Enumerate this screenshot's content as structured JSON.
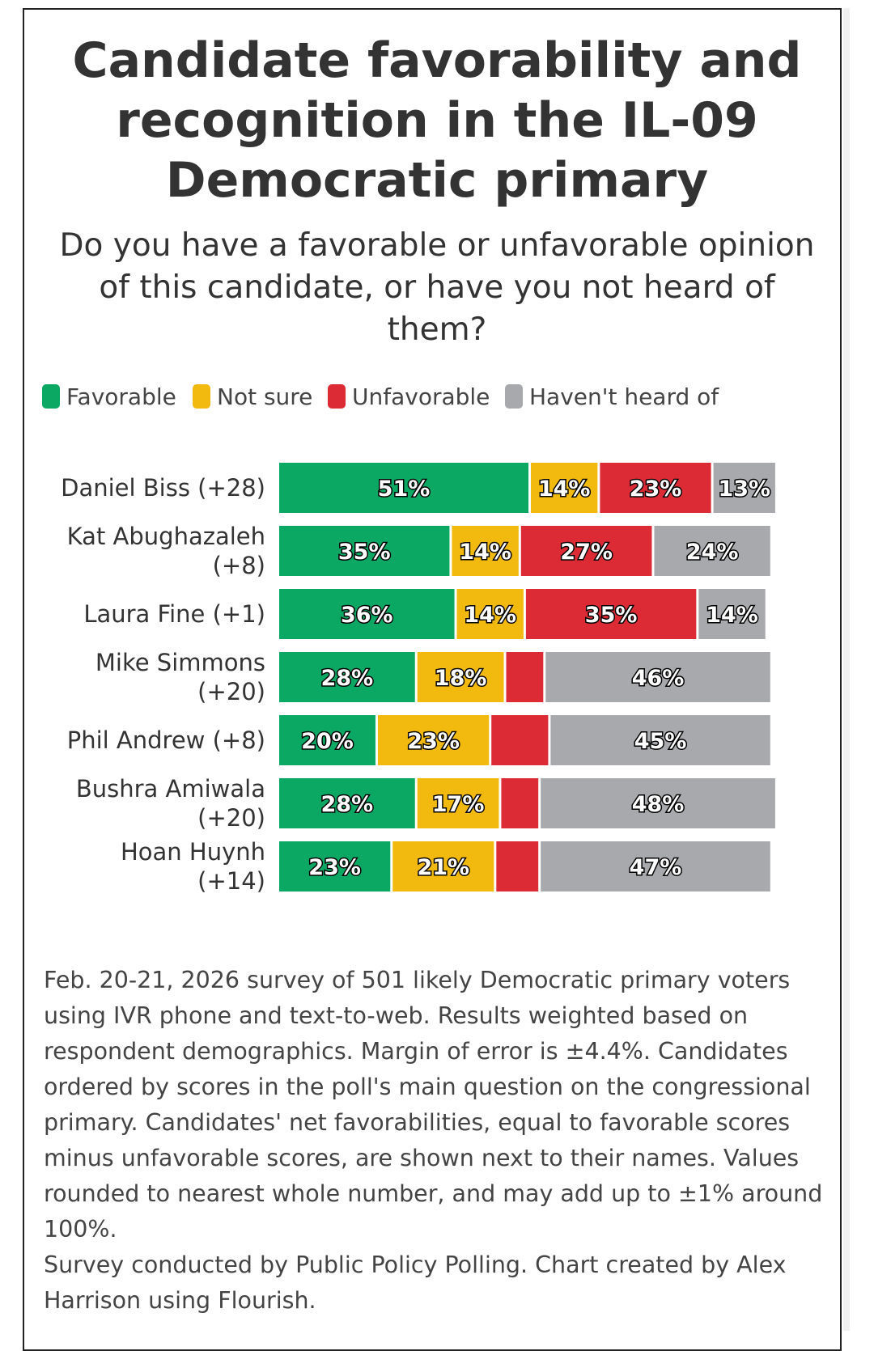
{
  "title": "Candidate favorability and recognition in the IL-09 Democratic primary",
  "subtitle": "Do you have a favorable or unfavorable opinion of this candidate, or have you not heard of them?",
  "colors": {
    "favorable": "#0aa862",
    "not_sure": "#f2b90e",
    "unfavorable": "#dc2b34",
    "havent_heard": "#a8a9ad"
  },
  "legend": [
    {
      "label": "Favorable",
      "color": "#0aa862"
    },
    {
      "label": "Not sure",
      "color": "#f2b90e"
    },
    {
      "label": "Unfavorable",
      "color": "#dc2b34"
    },
    {
      "label": "Haven't heard of",
      "color": "#a8a9ad"
    }
  ],
  "chart_data": {
    "type": "bar",
    "orientation": "horizontal",
    "stacked": true,
    "categories": [
      [
        "Daniel Biss (+28)"
      ],
      [
        "Kat Abughazaleh",
        "(+8)"
      ],
      [
        "Laura Fine (+1)"
      ],
      [
        "Mike Simmons",
        "(+20)"
      ],
      [
        "Phil Andrew (+8)"
      ],
      [
        "Bushra Amiwala",
        "(+20)"
      ],
      [
        "Hoan Huynh",
        "(+14)"
      ]
    ],
    "series": [
      {
        "name": "Favorable",
        "color": "#0aa862",
        "values": [
          51,
          35,
          36,
          28,
          20,
          28,
          23
        ],
        "labels": [
          "51%",
          "35%",
          "36%",
          "28%",
          "20%",
          "28%",
          "23%"
        ]
      },
      {
        "name": "Not sure",
        "color": "#f2b90e",
        "values": [
          14,
          14,
          14,
          18,
          23,
          17,
          21
        ],
        "labels": [
          "14%",
          "14%",
          "14%",
          "18%",
          "23%",
          "17%",
          "21%"
        ]
      },
      {
        "name": "Unfavorable",
        "color": "#dc2b34",
        "values": [
          23,
          27,
          35,
          8,
          12,
          8,
          9
        ],
        "labels": [
          "23%",
          "27%",
          "35%",
          "",
          "",
          "",
          ""
        ]
      },
      {
        "name": "Haven't heard of",
        "color": "#a8a9ad",
        "values": [
          13,
          24,
          14,
          46,
          45,
          48,
          47
        ],
        "labels": [
          "13%",
          "24%",
          "14%",
          "46%",
          "45%",
          "48%",
          "47%"
        ]
      }
    ],
    "xlim": [
      0,
      102
    ],
    "grid": false,
    "legend_position": "top-left"
  },
  "footnote": {
    "method": "Feb. 20-21, 2026 survey of 501 likely Democratic primary voters using IVR phone and text-to-web. Results weighted based on respondent demographics. Margin of error is ±4.4%. Candidates ordered by scores in the poll's main question on the congressional primary. Candidates' net favorabilities, equal to favorable scores minus unfavorable scores, are shown next to their names. Values rounded to nearest whole number, and may add up to ±1% around 100%.",
    "credit": "Survey conducted by Public Policy Polling. Chart created by Alex Harrison using Flourish."
  }
}
